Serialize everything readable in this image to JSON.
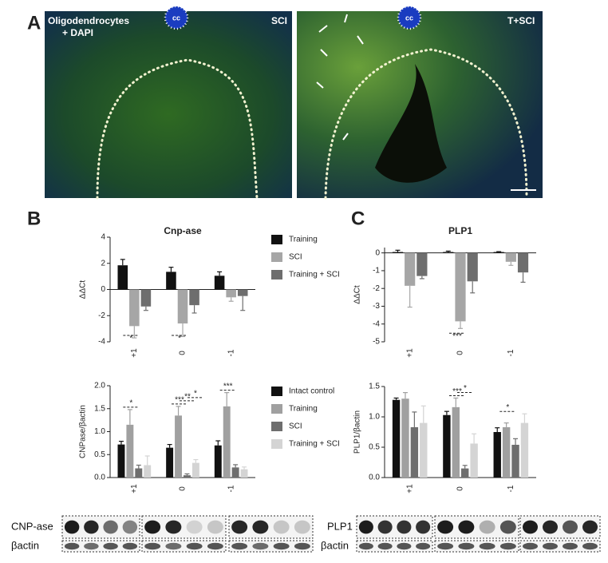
{
  "figure": {
    "panel_labels": [
      "A",
      "B",
      "C"
    ],
    "micrograph_left": {
      "label_line1": "Oligodendrocytes",
      "label_line2": "+ DAPI",
      "condition": "SCI",
      "region": "cc"
    },
    "micrograph_right": {
      "condition": "T+SCI",
      "region": "cc"
    },
    "blots": {
      "cnp_label": "CNP-ase",
      "cnp_actin": "βactin",
      "plp_label": "PLP1",
      "plp_actin": "βactin"
    }
  },
  "chart_data": [
    {
      "type": "bar",
      "title": "Cnp-ase",
      "y_label": "ΔΔCt",
      "categories": [
        "+1",
        "0",
        "-1"
      ],
      "series": [
        {
          "name": "Training",
          "color": "#111111",
          "values": [
            1.85,
            1.35,
            1.05
          ],
          "errors": [
            0.45,
            0.35,
            0.3
          ]
        },
        {
          "name": "SCI",
          "color": "#a6a6a6",
          "values": [
            -2.8,
            -2.6,
            -0.6
          ],
          "errors": [
            0.9,
            1.0,
            0.3
          ]
        },
        {
          "name": "Training + SCI",
          "color": "#6e6e6e",
          "values": [
            -1.3,
            -1.2,
            -0.5
          ],
          "errors": [
            0.3,
            0.6,
            1.1
          ]
        }
      ],
      "ylim": [
        -4,
        4
      ],
      "yticks": [
        -4,
        -2,
        0,
        2,
        4
      ],
      "legend": true,
      "significance": [
        {
          "category": "+1",
          "text": "*",
          "color": "#e02020"
        },
        {
          "category": "0",
          "text": "*",
          "color": "#e02020"
        }
      ]
    },
    {
      "type": "bar",
      "title": "PLP1",
      "y_label": "ΔΔCt",
      "categories": [
        "+1",
        "0",
        "-1"
      ],
      "series": [
        {
          "name": "Training",
          "color": "#111111",
          "values": [
            0.05,
            0.05,
            0.05
          ],
          "errors": [
            0.1,
            0.05,
            0.02
          ]
        },
        {
          "name": "SCI",
          "color": "#a6a6a6",
          "values": [
            -1.85,
            -3.85,
            -0.5
          ],
          "errors": [
            1.2,
            0.4,
            0.2
          ]
        },
        {
          "name": "Training + SCI",
          "color": "#6e6e6e",
          "values": [
            -1.3,
            -1.6,
            -1.1
          ],
          "errors": [
            0.15,
            0.65,
            0.55
          ]
        }
      ],
      "ylim": [
        -5,
        0.3
      ],
      "yticks": [
        -5,
        -4,
        -3,
        -2,
        -1,
        0
      ],
      "legend": false,
      "significance": [
        {
          "category": "0",
          "text": "***",
          "color": "#e02020"
        }
      ]
    },
    {
      "type": "bar",
      "y_label": "CNPase/βactin",
      "categories": [
        "+1",
        "0",
        "-1"
      ],
      "series": [
        {
          "name": "Intact control",
          "color": "#111111",
          "values": [
            0.72,
            0.65,
            0.7
          ],
          "errors": [
            0.07,
            0.07,
            0.1
          ]
        },
        {
          "name": "Training",
          "color": "#a0a0a0",
          "values": [
            1.15,
            1.35,
            1.55
          ],
          "errors": [
            0.33,
            0.2,
            0.3
          ]
        },
        {
          "name": "SCI",
          "color": "#6e6e6e",
          "values": [
            0.2,
            0.05,
            0.22
          ],
          "errors": [
            0.07,
            0.03,
            0.06
          ]
        },
        {
          "name": "Training + SCI",
          "color": "#d4d4d4",
          "values": [
            0.27,
            0.32,
            0.18
          ],
          "errors": [
            0.2,
            0.07,
            0.05
          ]
        }
      ],
      "ylim": [
        0,
        2
      ],
      "yticks": [
        {
          "value": 0,
          "label": "0.0"
        },
        {
          "value": 0.5,
          "label": "0.5"
        },
        {
          "value": 1,
          "label": "1.0"
        },
        {
          "value": 1.5,
          "label": "1.5"
        },
        {
          "value": 2,
          "label": "2.0"
        }
      ],
      "legend": true,
      "significance": [
        {
          "category": "+1",
          "text": "*",
          "color": "#222222"
        },
        {
          "category": "0",
          "text": "***",
          "color": "#222222"
        },
        {
          "category": "0",
          "text": "**",
          "color": "#222222"
        },
        {
          "category": "0",
          "text": "*",
          "color": "#e02020"
        },
        {
          "category": "-1",
          "text": "***",
          "color": "#222222"
        }
      ]
    },
    {
      "type": "bar",
      "y_label": "PLP1/βactin",
      "categories": [
        "+1",
        "0",
        "-1"
      ],
      "series": [
        {
          "name": "Intact control",
          "color": "#111111",
          "values": [
            1.28,
            1.03,
            0.75
          ],
          "errors": [
            0.03,
            0.06,
            0.07
          ]
        },
        {
          "name": "Training",
          "color": "#a0a0a0",
          "values": [
            1.3,
            1.16,
            0.83
          ],
          "errors": [
            0.1,
            0.15,
            0.07
          ]
        },
        {
          "name": "SCI",
          "color": "#6e6e6e",
          "values": [
            0.83,
            0.15,
            0.54
          ],
          "errors": [
            0.25,
            0.05,
            0.1
          ]
        },
        {
          "name": "Training + SCI",
          "color": "#d4d4d4",
          "values": [
            0.9,
            0.56,
            0.9
          ],
          "errors": [
            0.28,
            0.16,
            0.15
          ]
        }
      ],
      "ylim": [
        0,
        1.5
      ],
      "yticks": [
        {
          "value": 0,
          "label": "0.0"
        },
        {
          "value": 0.5,
          "label": "0.5"
        },
        {
          "value": 1,
          "label": "1.0"
        },
        {
          "value": 1.5,
          "label": "1.5"
        }
      ],
      "legend": false,
      "significance": [
        {
          "category": "0",
          "text": "***",
          "color": "#222222"
        },
        {
          "category": "0",
          "text": "*",
          "color": "#e02020"
        },
        {
          "category": "-1",
          "text": "*",
          "color": "#e02020"
        }
      ]
    }
  ]
}
